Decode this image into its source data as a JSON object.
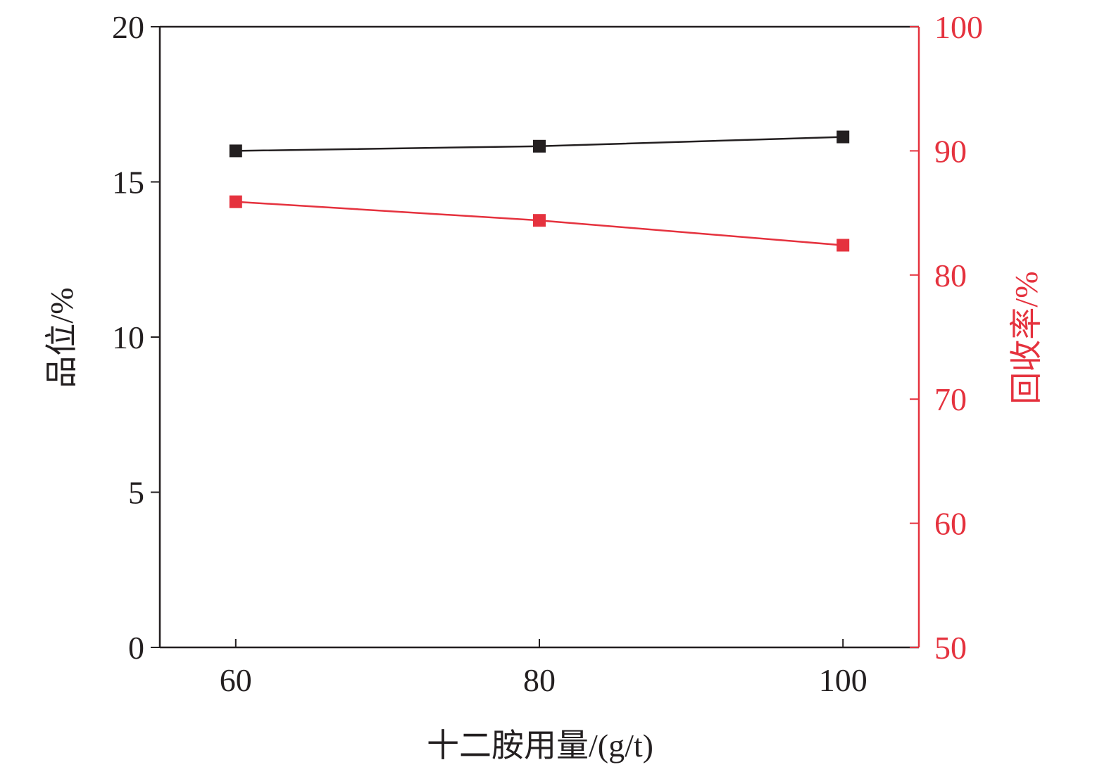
{
  "chart_data": {
    "type": "line",
    "title": "",
    "xlabel": "十二胺用量/(g/t)",
    "ylabel": "品位/%",
    "y2label": "回收率/%",
    "x": [
      60,
      80,
      100
    ],
    "x_ticks": [
      "60",
      "80",
      "100"
    ],
    "xlim": [
      55,
      105
    ],
    "ylim": [
      0,
      20
    ],
    "y_ticks": [
      "0",
      "5",
      "10",
      "15",
      "20"
    ],
    "y2lim": [
      50,
      100
    ],
    "y2_ticks": [
      "50",
      "60",
      "70",
      "80",
      "90",
      "100"
    ],
    "grid": false,
    "legend": "none",
    "series": [
      {
        "axis": "left",
        "color": "#231f20",
        "marker": "square",
        "values": [
          16.0,
          16.15,
          16.45
        ]
      },
      {
        "axis": "right",
        "color": "#e5323e",
        "marker": "square",
        "values": [
          85.9,
          84.4,
          82.4
        ]
      }
    ],
    "colors": {
      "left_axis": "#231f20",
      "right_axis": "#e5323e"
    }
  }
}
